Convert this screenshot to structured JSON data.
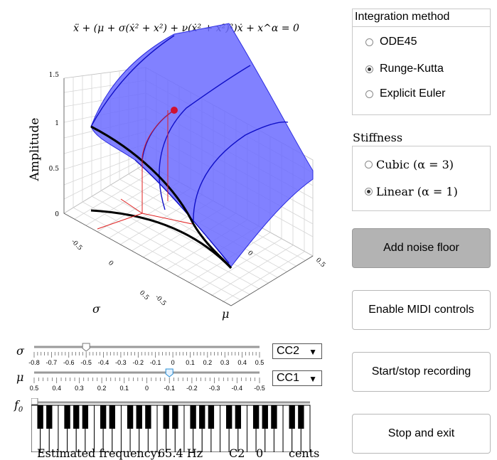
{
  "plot": {
    "equation": "ẍ + (μ + σ(ẋ² + x²) + ν(ẋ² + x²)²)ẋ + x^α = 0",
    "z_axis_label": "Amplitude",
    "x_axis_label": "σ",
    "y_axis_label": "μ",
    "z_ticks": [
      "1.5",
      "1",
      "0.5",
      "0"
    ],
    "sigma_ticks": [
      "-0.5",
      "0",
      "0.5"
    ],
    "mu_ticks": [
      "-0.5",
      "0",
      "0.5"
    ],
    "surface_color": "#6b6bff"
  },
  "integration": {
    "title": "Integration method",
    "options": [
      "ODE45",
      "Runge-Kutta",
      "Explicit Euler"
    ],
    "selected": "Runge-Kutta"
  },
  "stiffness": {
    "title": "Stiffness",
    "options": [
      "Cubic (α = 3)",
      "Linear (α = 1)"
    ],
    "selected": "Linear (α = 1)"
  },
  "buttons": {
    "noise": "Add noise floor",
    "midi": "Enable MIDI controls",
    "record": "Start/stop recording",
    "exit": "Stop and exit"
  },
  "sliders": {
    "sigma": {
      "label": "σ",
      "ticks": [
        "-0.8",
        "-0.7",
        "-0.6",
        "-0.5",
        "-0.4",
        "-0.3",
        "-0.2",
        "-0.1",
        "0",
        "0.1",
        "0.2",
        "0.3",
        "0.4",
        "0.5"
      ],
      "value": -0.5,
      "cc": "CC2"
    },
    "mu": {
      "label": "μ",
      "ticks": [
        "0.5",
        "0.4",
        "0.3",
        "0.2",
        "0.1",
        "0",
        "-0.1",
        "-0.2",
        "-0.3",
        "-0.4",
        "-0.5"
      ],
      "value": -0.1,
      "cc": "CC1"
    },
    "f0": {
      "label": "f0"
    }
  },
  "status": {
    "label": "Estimated frequency:",
    "frequency": "65.4 Hz",
    "note": "C2",
    "cents_value": "0",
    "cents_label": "cents"
  }
}
